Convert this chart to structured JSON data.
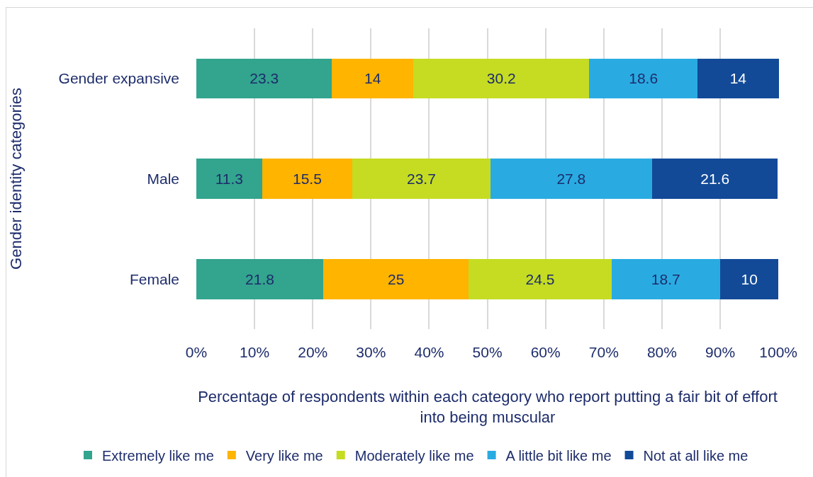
{
  "chart_data": {
    "type": "bar",
    "orientation": "horizontal",
    "stacked": true,
    "categories": [
      "Gender expansive",
      "Male",
      "Female"
    ],
    "series": [
      {
        "name": "Extremely like me",
        "color": "#33a48e",
        "values": [
          23.3,
          11.3,
          21.8
        ]
      },
      {
        "name": "Very like me",
        "color": "#ffb400",
        "values": [
          14,
          15.5,
          25
        ]
      },
      {
        "name": "Moderately like me",
        "color": "#c5dc22",
        "values": [
          30.2,
          23.7,
          24.5
        ]
      },
      {
        "name": "A little bit like me",
        "color": "#29abe2",
        "values": [
          18.6,
          27.8,
          18.7
        ]
      },
      {
        "name": "Not at all like me",
        "color": "#124a98",
        "values": [
          14,
          21.6,
          10
        ]
      }
    ],
    "xlabel": "Percentage of respondents within each category who report putting a fair bit of effort into being muscular",
    "ylabel": "Gender identity categories",
    "xlim": [
      0,
      100.1
    ],
    "xticks": [
      {
        "value": 0,
        "label": "0%"
      },
      {
        "value": 10,
        "label": "10%"
      },
      {
        "value": 20,
        "label": "20%"
      },
      {
        "value": 30,
        "label": "30%"
      },
      {
        "value": 40,
        "label": "40%"
      },
      {
        "value": 50,
        "label": "50%"
      },
      {
        "value": 60,
        "label": "60%"
      },
      {
        "value": 70,
        "label": "70%"
      },
      {
        "value": 80,
        "label": "80%"
      },
      {
        "value": 90,
        "label": "90%"
      },
      {
        "value": 100,
        "label": "100%"
      }
    ],
    "data_labels": true,
    "grid": "x",
    "legend": "bottom"
  }
}
